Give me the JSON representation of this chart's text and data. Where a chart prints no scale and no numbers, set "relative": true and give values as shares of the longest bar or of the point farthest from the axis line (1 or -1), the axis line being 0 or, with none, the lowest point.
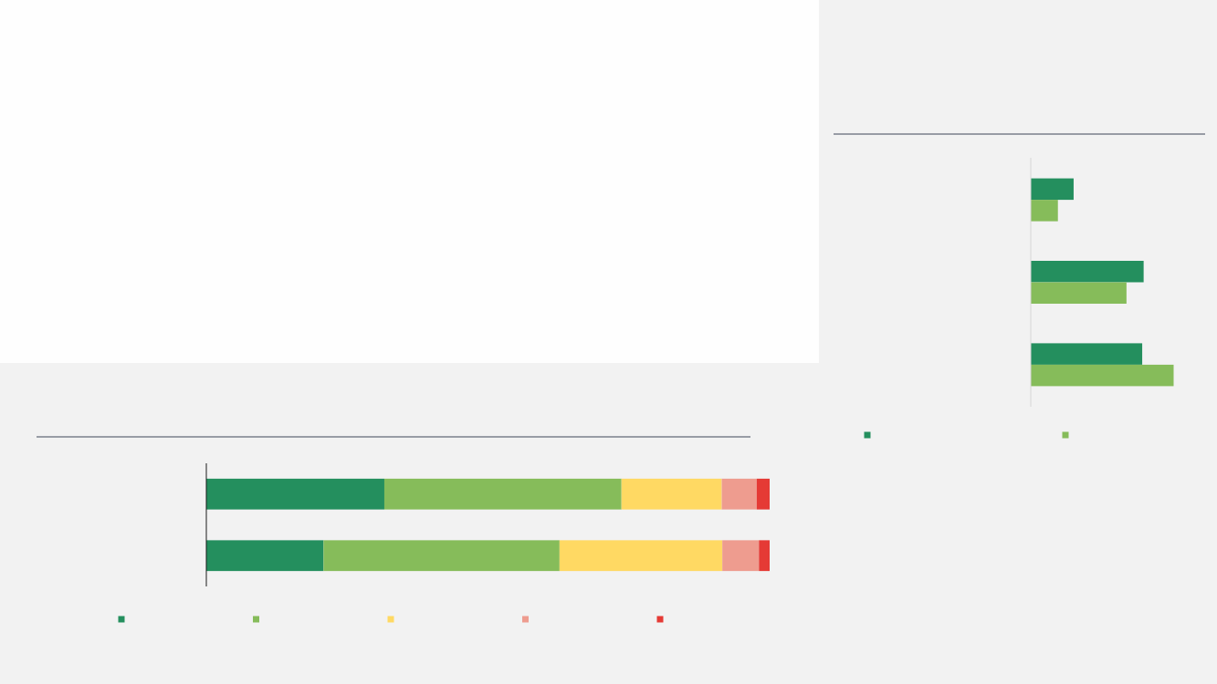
{
  "chart_data": [
    {
      "type": "bar",
      "orientation": "horizontal",
      "stacked": true,
      "relative": true,
      "categories": [
        null,
        null
      ],
      "series": [
        {
          "color": "#248f5e",
          "values": [
            0.316,
            0.208
          ]
        },
        {
          "color": "#86bc5a",
          "values": [
            0.421,
            0.419
          ]
        },
        {
          "color": "#ffd963",
          "values": [
            0.178,
            0.289
          ]
        },
        {
          "color": "#ee9c8f",
          "values": [
            0.062,
            0.065
          ]
        },
        {
          "color": "#e53a35",
          "values": [
            0.023,
            0.019
          ]
        }
      ]
    },
    {
      "type": "bar",
      "orientation": "horizontal",
      "relative": true,
      "categories": [
        null,
        null,
        null
      ],
      "series": [
        {
          "color": "#248f5e",
          "values": [
            0.3,
            0.79,
            0.78
          ]
        },
        {
          "color": "#86bc5a",
          "values": [
            0.19,
            0.67,
            1
          ]
        }
      ]
    }
  ]
}
